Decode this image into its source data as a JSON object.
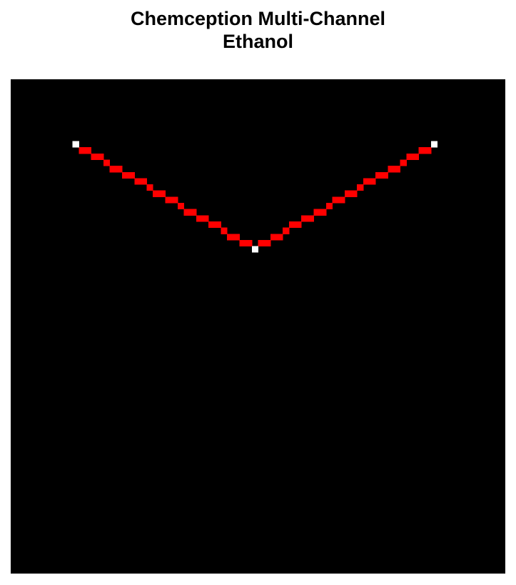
{
  "title": {
    "line1": "Chemception Multi-Channel",
    "line2": "Ethanol"
  },
  "image": {
    "background_color": "#000000",
    "bond_color": "#ff0000",
    "atom_color": "#ffffff",
    "grid_size": 80,
    "atoms": [
      {
        "col": 10,
        "row": 10
      },
      {
        "col": 39,
        "row": 27
      },
      {
        "col": 68,
        "row": 10
      }
    ],
    "bonds": [
      {
        "from": 0,
        "to": 1
      },
      {
        "from": 1,
        "to": 2
      }
    ]
  }
}
